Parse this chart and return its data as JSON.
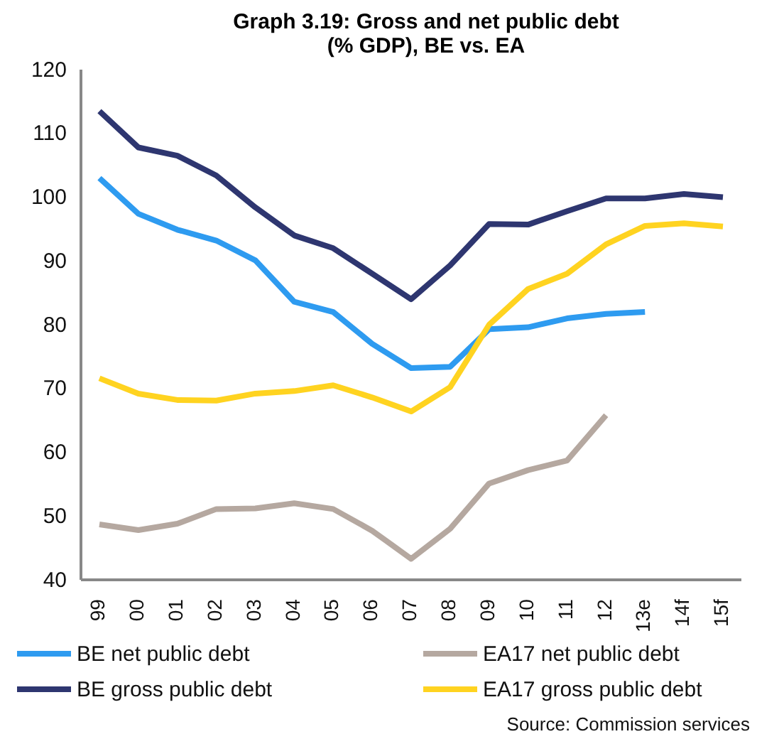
{
  "chart_data": {
    "type": "line",
    "title": "Graph 3.19: Gross and net public debt (% GDP), BE vs. EA",
    "categories": [
      "99",
      "00",
      "01",
      "02",
      "03",
      "04",
      "05",
      "06",
      "07",
      "08",
      "09",
      "10",
      "11",
      "12",
      "13e",
      "14f",
      "15f"
    ],
    "series": [
      {
        "name": "BE net public debt",
        "color": "#2e9bf0",
        "values": [
          103,
          97.4,
          94.9,
          93.2,
          90.1,
          83.6,
          82.0,
          77.0,
          73.2,
          73.4,
          79.3,
          79.6,
          81.0,
          81.7,
          82.0,
          null,
          null
        ]
      },
      {
        "name": "EA17 net public debt",
        "color": "#b5a8a0",
        "values": [
          48.7,
          47.8,
          48.8,
          51.1,
          51.2,
          52.0,
          51.1,
          47.7,
          43.3,
          48.0,
          55.1,
          57.2,
          58.7,
          65.8,
          null,
          null,
          null
        ]
      },
      {
        "name": "BE gross public debt",
        "color": "#2e3670",
        "values": [
          113.5,
          107.8,
          106.5,
          103.4,
          98.4,
          94.0,
          92.0,
          88.0,
          84.0,
          89.3,
          95.8,
          95.7,
          97.8,
          99.8,
          99.8,
          100.5,
          100.0
        ]
      },
      {
        "name": "EA17 gross public debt",
        "color": "#ffd320",
        "values": [
          71.6,
          69.2,
          68.2,
          68.1,
          69.2,
          69.6,
          70.5,
          68.6,
          66.4,
          70.2,
          80.0,
          85.6,
          88.0,
          92.6,
          95.5,
          95.9,
          95.4
        ]
      }
    ],
    "ylim": [
      40,
      120
    ],
    "yticks": [
      40,
      50,
      60,
      70,
      80,
      90,
      100,
      110,
      120
    ],
    "grid": false,
    "legend": "bottom",
    "marker": "none",
    "line_style": "solid",
    "annotations": [
      "Source: Commission services"
    ]
  }
}
